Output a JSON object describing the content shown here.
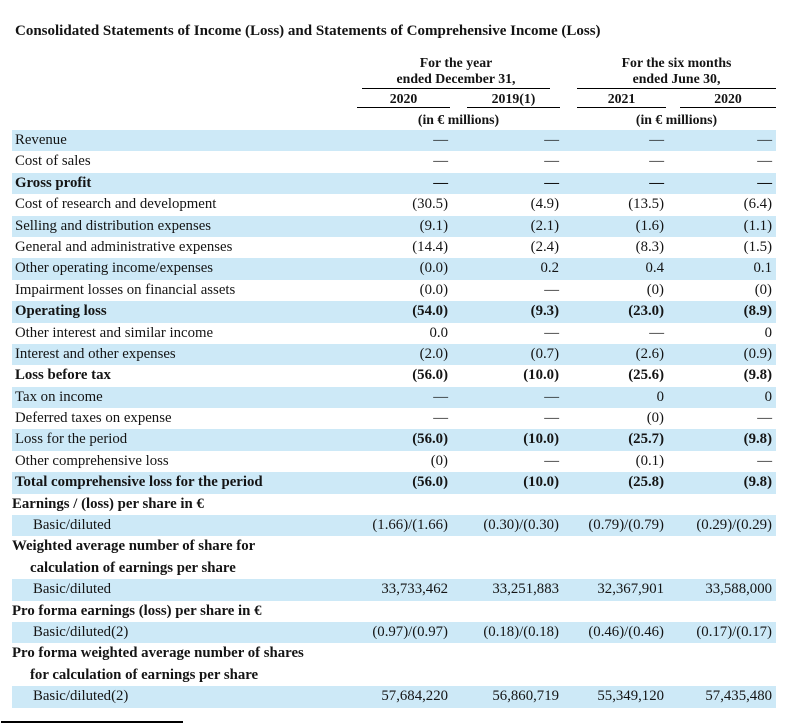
{
  "document": {
    "title": "Consolidated Statements of Income (Loss) and Statements of Comprehensive Income (Loss)"
  },
  "colors": {
    "stripe_blue": "#cde9f7",
    "text": "#141414"
  },
  "table": {
    "header": {
      "groups": [
        {
          "line1": "For the year",
          "line2": "ended December 31,",
          "unit": "(in € millions)"
        },
        {
          "line1": "For the six months",
          "line2": "ended June 30,",
          "unit": "(in € millions)"
        }
      ],
      "columns": [
        "2020",
        "2019(1)",
        "2021",
        "2020"
      ]
    },
    "rows": [
      {
        "label": "Revenue",
        "values": [
          "—",
          "—",
          "—",
          "—"
        ],
        "shaded": true
      },
      {
        "label": "Cost of sales",
        "values": [
          "—",
          "—",
          "—",
          "—"
        ]
      },
      {
        "label": "Gross profit",
        "values": [
          "—",
          "—",
          "—",
          "—"
        ],
        "bold": true,
        "shaded": true
      },
      {
        "label": "Cost of research and development",
        "values": [
          "(30.5)",
          "(4.9)",
          "(13.5)",
          "(6.4)"
        ]
      },
      {
        "label": "Selling and distribution expenses",
        "values": [
          "(9.1)",
          "(2.1)",
          "(1.6)",
          "(1.1)"
        ],
        "shaded": true
      },
      {
        "label": "General and administrative expenses",
        "values": [
          "(14.4)",
          "(2.4)",
          "(8.3)",
          "(1.5)"
        ]
      },
      {
        "label": "Other operating income/expenses",
        "values": [
          "(0.0)",
          "0.2",
          "0.4",
          "0.1"
        ],
        "shaded": true
      },
      {
        "label": "Impairment losses on financial assets",
        "values": [
          "(0.0)",
          "—",
          "(0)",
          "(0)"
        ]
      },
      {
        "label": "Operating loss",
        "values": [
          "(54.0)",
          "(9.3)",
          "(23.0)",
          "(8.9)"
        ],
        "bold": true,
        "shaded": true
      },
      {
        "label": "Other interest and similar income",
        "values": [
          "0.0",
          "—",
          "—",
          "0"
        ]
      },
      {
        "label": "Interest and other expenses",
        "values": [
          "(2.0)",
          "(0.7)",
          "(2.6)",
          "(0.9)"
        ],
        "shaded": true
      },
      {
        "label": "Loss before tax",
        "values": [
          "(56.0)",
          "(10.0)",
          "(25.6)",
          "(9.8)"
        ],
        "bold": true
      },
      {
        "label": "Tax on income",
        "values": [
          "—",
          "—",
          "0",
          "0"
        ],
        "shaded": true
      },
      {
        "label": "Deferred taxes on expense",
        "values": [
          "—",
          "—",
          "(0)",
          "—"
        ]
      },
      {
        "label": "Loss for the period",
        "values": [
          "(56.0)",
          "(10.0)",
          "(25.7)",
          "(9.8)"
        ],
        "values_bold": true,
        "shaded": true
      },
      {
        "label": "Other comprehensive loss",
        "values": [
          "(0)",
          "—",
          "(0.1)",
          "—"
        ]
      },
      {
        "label": "Total comprehensive loss for the period",
        "values": [
          "(56.0)",
          "(10.0)",
          "(25.8)",
          "(9.8)"
        ],
        "bold": true,
        "shaded": true
      },
      {
        "label": "Earnings / (loss) per share in €",
        "section": true
      },
      {
        "label": "Basic/diluted",
        "values": [
          "(1.66)/(1.66)",
          "(0.30)/(0.30)",
          "(0.79)/(0.79)",
          "(0.29)/(0.29)"
        ],
        "indent": true,
        "shaded": true
      },
      {
        "label": "Weighted average number of share for",
        "label2": "calculation of earnings per share",
        "section": true
      },
      {
        "label": "Basic/diluted",
        "values": [
          "33,733,462",
          "33,251,883",
          "32,367,901",
          "33,588,000"
        ],
        "indent": true,
        "shaded": true
      },
      {
        "label": "Pro forma earnings (loss) per share in €",
        "section": true
      },
      {
        "label": "Basic/diluted(2)",
        "values": [
          "(0.97)/(0.97)",
          "(0.18)/(0.18)",
          "(0.46)/(0.46)",
          "(0.17)/(0.17)"
        ],
        "indent": true,
        "shaded": true
      },
      {
        "label": "Pro forma weighted average number of shares",
        "label2": "for calculation of earnings per share",
        "section": true
      },
      {
        "label": "Basic/diluted(2)",
        "values": [
          "57,684,220",
          "56,860,719",
          "55,349,120",
          "57,435,480"
        ],
        "indent": true,
        "shaded": true
      }
    ]
  }
}
